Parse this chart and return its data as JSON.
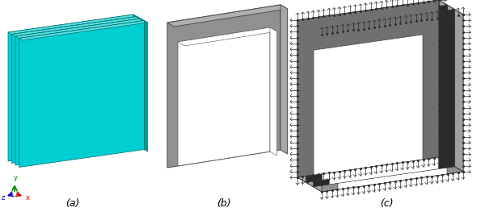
{
  "background_color": "#ffffff",
  "fig_width": 6.0,
  "fig_height": 2.68,
  "dpi": 100,
  "labels": [
    "(a)",
    "(b)",
    "(c)"
  ],
  "label_fontsize": 9,
  "panel_a_color": "#00CED1",
  "panel_a_top_color": "#55DDDD",
  "panel_a_right_color": "#009999",
  "panel_a_edge": "#007070",
  "panel_b_frame_color": "#888888",
  "panel_b_frame_dark": "#555555",
  "panel_c_frame_color": "#909090",
  "panel_c_dark": "#404040",
  "connector_color": "#303030",
  "axis_x_color": "#CC0000",
  "axis_y_color": "#008800",
  "axis_z_color": "#0000CC"
}
